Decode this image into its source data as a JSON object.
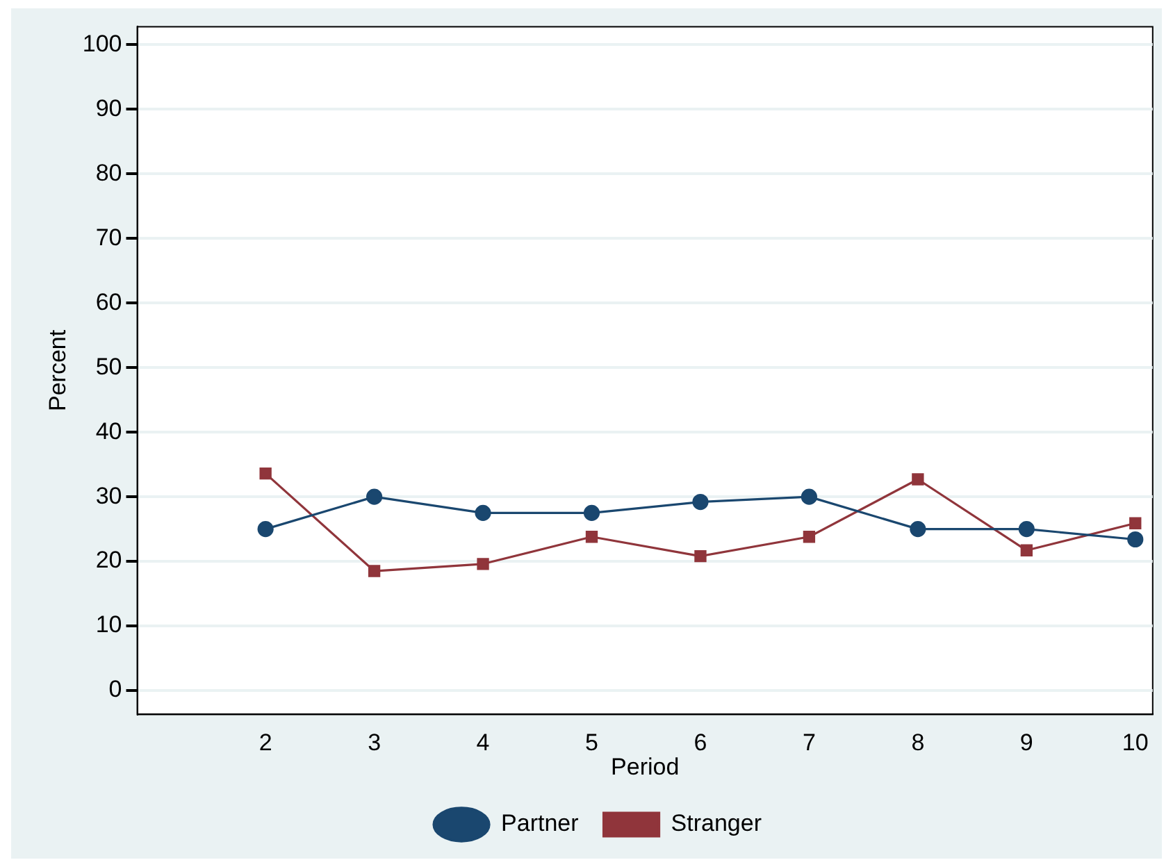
{
  "chart_data": {
    "type": "line",
    "xlabel": "Period",
    "ylabel": "Percent",
    "x": [
      2,
      3,
      4,
      5,
      6,
      7,
      8,
      9,
      10
    ],
    "xlim": [
      0.82,
      10.16
    ],
    "xticks": [
      2,
      3,
      4,
      5,
      6,
      7,
      8,
      9,
      10
    ],
    "ylim": [
      -3.7,
      102.8
    ],
    "yticks": [
      0,
      10,
      20,
      30,
      40,
      50,
      60,
      70,
      80,
      90,
      100
    ],
    "grid": "y",
    "legend": "bottom",
    "series": [
      {
        "name": "Partner",
        "color": "#1a476f",
        "marker": "circle",
        "values": [
          25,
          30,
          27.5,
          27.5,
          29.2,
          30,
          25,
          25,
          23.4
        ]
      },
      {
        "name": "Stranger",
        "color": "#90353b",
        "marker": "square",
        "values": [
          33.6,
          18.5,
          19.6,
          23.8,
          20.8,
          23.8,
          32.7,
          21.7,
          25.9
        ]
      }
    ]
  }
}
